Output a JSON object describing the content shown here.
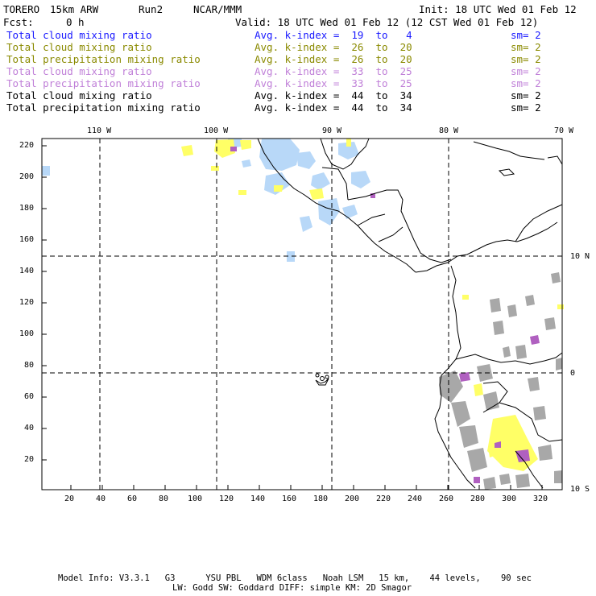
{
  "header": {
    "model": "TORERO",
    "resolution": "15km ARW",
    "run": "Run2",
    "org": "NCAR/MMM",
    "init": "Init: 18 UTC Wed 01 Feb 12",
    "fcst_label": "Fcst:",
    "fcst_value": "0 h",
    "valid": "Valid: 18 UTC Wed 01 Feb 12 (12 CST Wed 01 Feb 12)"
  },
  "legend": [
    {
      "label": "Total cloud mixing ratio",
      "index": "Avg. k-index =  19  to   4",
      "sm": "sm= 2",
      "color": "#1a1aff"
    },
    {
      "label": "Total cloud mixing ratio",
      "index": "Avg. k-index =  26  to  20",
      "sm": "sm= 2",
      "color": "#8a8a00"
    },
    {
      "label": "Total precipitation mixing ratio",
      "index": "Avg. k-index =  26  to  20",
      "sm": "sm= 2",
      "color": "#8a8a00"
    },
    {
      "label": "Total cloud mixing ratio",
      "index": "Avg. k-index =  33  to  25",
      "sm": "sm= 2",
      "color": "#c080d8"
    },
    {
      "label": "Total precipitation mixing ratio",
      "index": "Avg. k-index =  33  to  25",
      "sm": "sm= 2",
      "color": "#c080d8"
    },
    {
      "label": "Total cloud mixing ratio",
      "index": "Avg. k-index =  44  to  34",
      "sm": "sm= 2",
      "color": "#000000"
    },
    {
      "label": "Total precipitation mixing ratio",
      "index": "Avg. k-index =  44  to  34",
      "sm": "sm= 2",
      "color": "#000000"
    }
  ],
  "map": {
    "lon_labels": [
      "110 W",
      "100 W",
      "90 W",
      "80 W",
      "70 W"
    ],
    "lat_labels": [
      "10 N",
      "0",
      "10 S"
    ],
    "y_ticks": [
      "220",
      "200",
      "180",
      "160",
      "140",
      "120",
      "100",
      "80",
      "60",
      "40",
      "20"
    ],
    "x_ticks": [
      "20",
      "40",
      "60",
      "80",
      "100",
      "120",
      "140",
      "160",
      "180",
      "200",
      "220",
      "240",
      "260",
      "280",
      "300",
      "320"
    ],
    "colors": {
      "light_blue": "#b8d8f8",
      "yellow": "#ffff66",
      "purple": "#b060c0",
      "gray": "#a8a8a8",
      "coast": "#000000"
    }
  },
  "footer": {
    "line1": "Model Info: V3.3.1   G3      YSU PBL   WDM 6class   Noah LSM   15 km,    44 levels,    90 sec",
    "line2": "LW: Godd SW: Goddard DIFF: simple KM: 2D Smagor"
  }
}
